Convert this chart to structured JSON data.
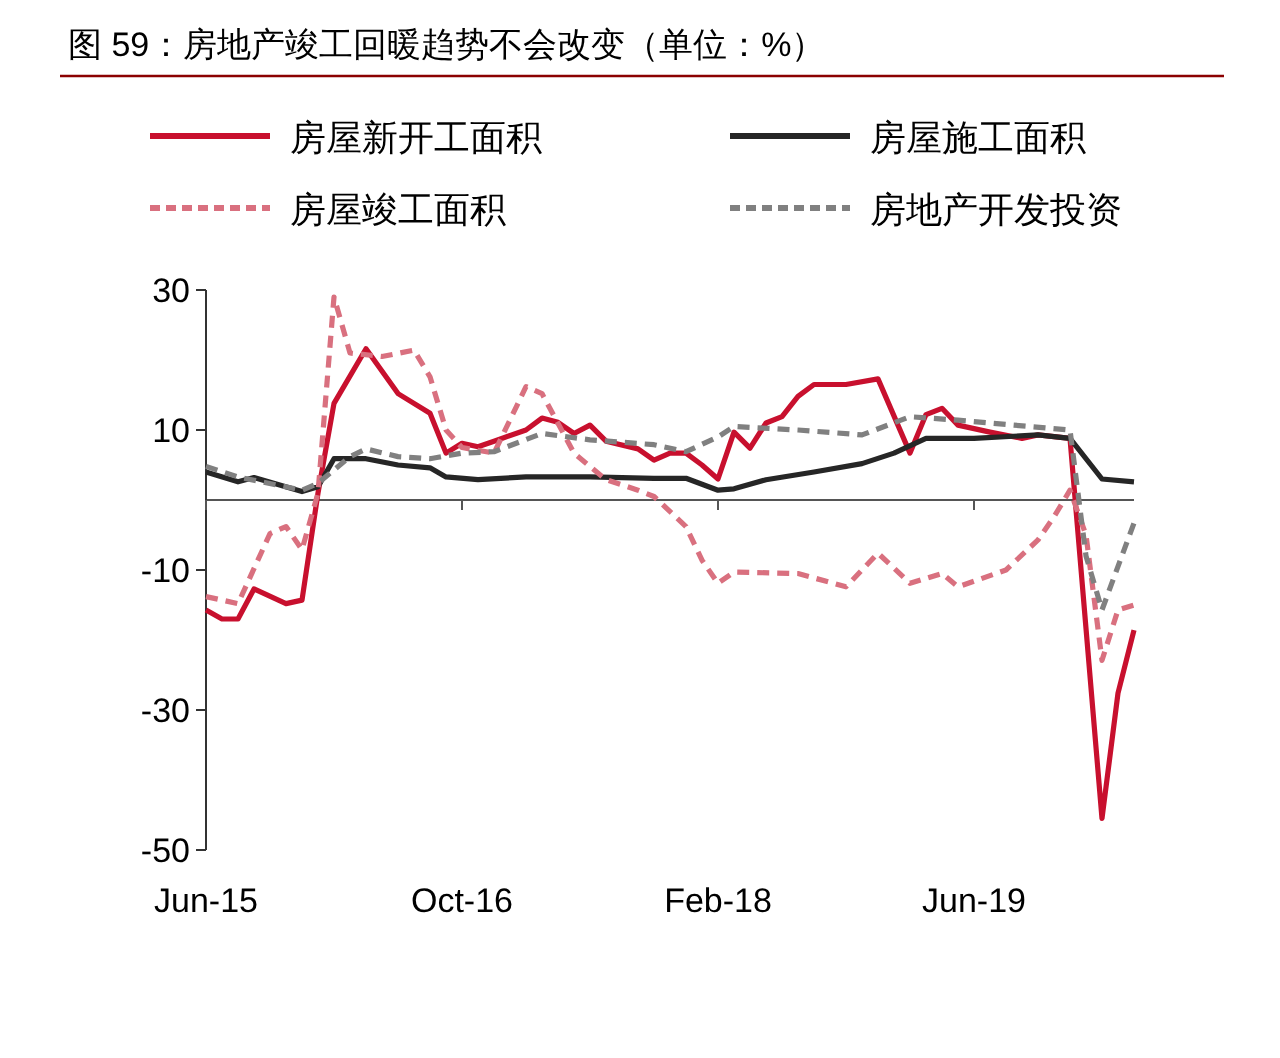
{
  "chart_data": {
    "type": "line",
    "title": "图 59：房地产竣工回暖趋势不会改变（单位：%）",
    "xlim": [
      "2015-06",
      "2020-04"
    ],
    "xticks": [
      {
        "value": "2015-06",
        "label": "Jun-15"
      },
      {
        "value": "2016-10",
        "label": "Oct-16"
      },
      {
        "value": "2018-02",
        "label": "Feb-18"
      },
      {
        "value": "2019-06",
        "label": "Jun-19"
      }
    ],
    "ylim": [
      -50,
      30
    ],
    "yticks": [
      -50,
      -30,
      -10,
      10,
      30
    ],
    "grid": false,
    "legend": "top",
    "marker": "none",
    "series": [
      {
        "name": "房屋新开工面积",
        "color": "#c8102e",
        "line_style": "solid",
        "x": [
          "2015-06",
          "2015-07",
          "2015-08",
          "2015-09",
          "2015-11",
          "2015-12",
          "2016-01",
          "2016-02",
          "2016-04",
          "2016-06",
          "2016-08",
          "2016-09",
          "2016-10",
          "2016-11",
          "2016-12",
          "2017-02",
          "2017-03",
          "2017-04",
          "2017-05",
          "2017-06",
          "2017-07",
          "2017-09",
          "2017-10",
          "2017-11",
          "2017-12",
          "2018-01",
          "2018-02",
          "2018-03",
          "2018-04",
          "2018-05",
          "2018-06",
          "2018-07",
          "2018-08",
          "2018-10",
          "2018-12",
          "2019-02",
          "2019-03",
          "2019-04",
          "2019-05",
          "2019-07",
          "2019-09",
          "2019-10",
          "2019-12",
          "2020-02",
          "2020-03",
          "2020-04"
        ],
        "values": [
          -15.7,
          -17,
          -17,
          -12.7,
          -14.8,
          -14.3,
          1,
          13.8,
          21.6,
          15.2,
          12.4,
          6.7,
          8.1,
          7.6,
          8.4,
          10,
          11.7,
          11.1,
          9.5,
          10.7,
          8.4,
          7.3,
          5.7,
          6.7,
          6.7,
          5,
          3,
          9.7,
          7.4,
          11,
          11.9,
          14.8,
          16.5,
          16.5,
          17.3,
          6.7,
          12.2,
          13.1,
          10.7,
          9.7,
          8.8,
          9.3,
          8.8,
          -45.5,
          -27.6,
          -18.6
        ]
      },
      {
        "name": "房屋施工面积",
        "color": "#262626",
        "line_style": "solid",
        "x": [
          "2015-06",
          "2015-08",
          "2015-09",
          "2015-12",
          "2016-01",
          "2016-02",
          "2016-04",
          "2016-06",
          "2016-08",
          "2016-09",
          "2016-11",
          "2017-02",
          "2017-06",
          "2017-10",
          "2017-12",
          "2018-02",
          "2018-03",
          "2018-05",
          "2018-08",
          "2018-11",
          "2019-01",
          "2019-03",
          "2019-06",
          "2019-10",
          "2019-12",
          "2020-02",
          "2020-04"
        ],
        "values": [
          4,
          2.6,
          3.2,
          1.2,
          1.9,
          5.9,
          5.9,
          5,
          4.6,
          3.3,
          2.9,
          3.3,
          3.3,
          3.1,
          3.1,
          1.4,
          1.6,
          2.9,
          4,
          5.2,
          6.7,
          8.8,
          8.8,
          9.3,
          8.8,
          3,
          2.6
        ]
      },
      {
        "name": "房屋竣工面积",
        "color": "#d9707f",
        "line_style": "dashed",
        "x": [
          "2015-06",
          "2015-08",
          "2015-10",
          "2015-11",
          "2015-12",
          "2016-01",
          "2016-02",
          "2016-03",
          "2016-05",
          "2016-07",
          "2016-08",
          "2016-09",
          "2016-10",
          "2016-12",
          "2017-02",
          "2017-03",
          "2017-05",
          "2017-07",
          "2017-09",
          "2017-10",
          "2017-12",
          "2018-01",
          "2018-02",
          "2018-03",
          "2018-07",
          "2018-10",
          "2018-12",
          "2019-02",
          "2019-04",
          "2019-05",
          "2019-08",
          "2019-10",
          "2019-11",
          "2019-12",
          "2020-01",
          "2020-02",
          "2020-03",
          "2020-04"
        ],
        "values": [
          -13.8,
          -14.8,
          -4.8,
          -3.8,
          -7.1,
          1,
          29,
          21,
          20.5,
          21.4,
          17.6,
          10,
          7.5,
          6.7,
          16.2,
          15.2,
          6.7,
          2.9,
          1.4,
          0.5,
          -3.8,
          -8.6,
          -11.9,
          -10.3,
          -10.5,
          -12.4,
          -7.6,
          -11.9,
          -10.5,
          -12.4,
          -10,
          -5.7,
          -2.4,
          1.4,
          -5,
          -22.9,
          -15.7,
          -15
        ]
      },
      {
        "name": "房地产开发投资",
        "color": "#808080",
        "line_style": "dashed",
        "x": [
          "2015-06",
          "2015-08",
          "2015-12",
          "2016-01",
          "2016-03",
          "2016-04",
          "2016-06",
          "2016-08",
          "2016-10",
          "2016-12",
          "2017-03",
          "2017-06",
          "2017-10",
          "2017-12",
          "2018-02",
          "2018-03",
          "2018-07",
          "2018-11",
          "2019-02",
          "2019-05",
          "2019-12",
          "2020-01",
          "2020-02",
          "2020-04"
        ],
        "values": [
          4.8,
          3.3,
          1.4,
          2.4,
          6.2,
          7.3,
          6.2,
          5.9,
          6.7,
          6.9,
          9.5,
          8.6,
          7.9,
          6.9,
          9,
          10.5,
          10,
          9.3,
          11.9,
          11.4,
          10,
          -8,
          -15.7,
          -3.3
        ]
      }
    ]
  }
}
